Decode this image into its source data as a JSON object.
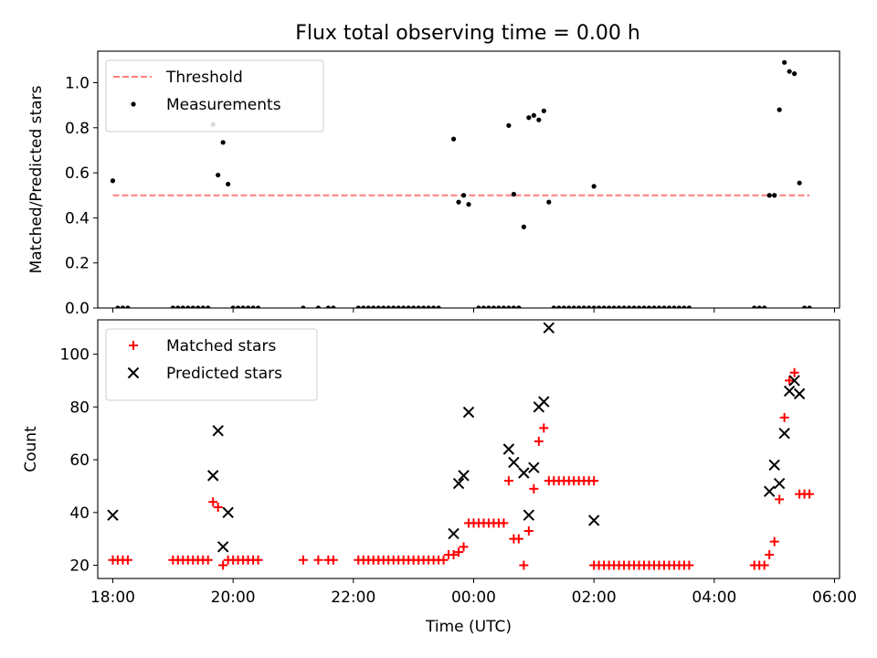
{
  "title": "Flux total observing time = 0.00 h",
  "colors": {
    "threshold": "#ff7f7f",
    "measurements": "#000000",
    "matched": "#ff0000",
    "predicted": "#000000"
  },
  "chart_data": [
    {
      "type": "scatter",
      "panel": "top",
      "title": "Flux total observing time = 0.00 h",
      "xlabel": "",
      "ylabel": "Matched/Predicted stars",
      "xlim": [
        "17:45",
        "06:05"
      ],
      "ylim": [
        0,
        1.14
      ],
      "x_ticks": [
        "18:00",
        "20:00",
        "22:00",
        "00:00",
        "02:00",
        "04:00",
        "06:00"
      ],
      "y_ticks": [
        0.0,
        0.2,
        0.4,
        0.6,
        0.8,
        1.0
      ],
      "y_tick_labels": [
        "0.0",
        "0.2",
        "0.4",
        "0.6",
        "0.8",
        "1.0"
      ],
      "legend_position": "top-left",
      "threshold": {
        "name": "Threshold",
        "value": 0.5,
        "x_range": [
          "18:00",
          "05:35"
        ],
        "style": "dashed"
      },
      "series": [
        {
          "name": "Measurements",
          "points": [
            [
              "18:00",
              0.565
            ],
            [
              "18:05",
              0
            ],
            [
              "18:10",
              0
            ],
            [
              "18:15",
              0
            ],
            [
              "19:00",
              0
            ],
            [
              "19:05",
              0
            ],
            [
              "19:10",
              0
            ],
            [
              "19:15",
              0
            ],
            [
              "19:20",
              0
            ],
            [
              "19:25",
              0
            ],
            [
              "19:30",
              0
            ],
            [
              "19:35",
              0
            ],
            [
              "19:40",
              0.815
            ],
            [
              "19:45",
              0.59
            ],
            [
              "19:50",
              0.735
            ],
            [
              "19:55",
              0.55
            ],
            [
              "20:00",
              0
            ],
            [
              "20:05",
              0
            ],
            [
              "20:10",
              0
            ],
            [
              "20:15",
              0
            ],
            [
              "20:20",
              0
            ],
            [
              "20:25",
              0
            ],
            [
              "21:10",
              0
            ],
            [
              "21:25",
              0
            ],
            [
              "21:35",
              0
            ],
            [
              "21:40",
              0
            ],
            [
              "22:05",
              0
            ],
            [
              "22:10",
              0
            ],
            [
              "22:15",
              0
            ],
            [
              "22:20",
              0
            ],
            [
              "22:25",
              0
            ],
            [
              "22:30",
              0
            ],
            [
              "22:35",
              0
            ],
            [
              "22:40",
              0
            ],
            [
              "22:45",
              0
            ],
            [
              "22:50",
              0
            ],
            [
              "22:55",
              0
            ],
            [
              "23:00",
              0
            ],
            [
              "23:05",
              0
            ],
            [
              "23:10",
              0
            ],
            [
              "23:15",
              0
            ],
            [
              "23:20",
              0
            ],
            [
              "23:25",
              0
            ],
            [
              "23:40",
              0.75
            ],
            [
              "23:45",
              0.47
            ],
            [
              "23:50",
              0.5
            ],
            [
              "23:55",
              0.46
            ],
            [
              "00:05",
              0
            ],
            [
              "00:10",
              0
            ],
            [
              "00:15",
              0
            ],
            [
              "00:20",
              0
            ],
            [
              "00:25",
              0
            ],
            [
              "00:30",
              0
            ],
            [
              "00:35",
              0
            ],
            [
              "00:40",
              0
            ],
            [
              "00:45",
              0
            ],
            [
              "00:35",
              0.81
            ],
            [
              "00:40",
              0.505
            ],
            [
              "00:45",
              0
            ],
            [
              "00:50",
              0.36
            ],
            [
              "00:55",
              0.845
            ],
            [
              "01:00",
              0.855
            ],
            [
              "01:05",
              0.835
            ],
            [
              "01:10",
              0.875
            ],
            [
              "01:15",
              0.47
            ],
            [
              "01:20",
              0
            ],
            [
              "01:25",
              0
            ],
            [
              "01:30",
              0
            ],
            [
              "01:35",
              0
            ],
            [
              "01:40",
              0
            ],
            [
              "01:45",
              0
            ],
            [
              "01:50",
              0
            ],
            [
              "01:55",
              0
            ],
            [
              "02:00",
              0
            ],
            [
              "02:05",
              0
            ],
            [
              "02:00",
              0.54
            ],
            [
              "02:10",
              0
            ],
            [
              "02:15",
              0
            ],
            [
              "02:20",
              0
            ],
            [
              "02:25",
              0
            ],
            [
              "02:30",
              0
            ],
            [
              "02:35",
              0
            ],
            [
              "02:40",
              0
            ],
            [
              "02:45",
              0
            ],
            [
              "02:50",
              0
            ],
            [
              "02:55",
              0
            ],
            [
              "03:00",
              0
            ],
            [
              "03:05",
              0
            ],
            [
              "03:10",
              0
            ],
            [
              "03:15",
              0
            ],
            [
              "03:20",
              0
            ],
            [
              "03:25",
              0
            ],
            [
              "03:30",
              0
            ],
            [
              "03:35",
              0
            ],
            [
              "04:40",
              0
            ],
            [
              "04:45",
              0
            ],
            [
              "04:50",
              0
            ],
            [
              "04:55",
              0.5
            ],
            [
              "05:00",
              0.5
            ],
            [
              "05:05",
              0.88
            ],
            [
              "05:10",
              1.09
            ],
            [
              "05:15",
              1.05
            ],
            [
              "05:20",
              1.04
            ],
            [
              "05:25",
              0.555
            ],
            [
              "05:30",
              0
            ],
            [
              "05:35",
              0
            ]
          ]
        }
      ]
    },
    {
      "type": "scatter",
      "panel": "bottom",
      "xlabel": "Time (UTC)",
      "ylabel": "Count",
      "xlim": [
        "17:45",
        "06:05"
      ],
      "ylim": [
        15,
        113
      ],
      "x_ticks": [
        "18:00",
        "20:00",
        "22:00",
        "00:00",
        "02:00",
        "04:00",
        "06:00"
      ],
      "y_ticks": [
        20,
        40,
        60,
        80,
        100
      ],
      "y_tick_labels": [
        "20",
        "40",
        "60",
        "80",
        "100"
      ],
      "legend_position": "top-left",
      "series": [
        {
          "name": "Matched stars",
          "marker": "plus",
          "points": [
            [
              "18:00",
              22
            ],
            [
              "18:05",
              22
            ],
            [
              "18:10",
              22
            ],
            [
              "18:15",
              22
            ],
            [
              "19:00",
              22
            ],
            [
              "19:05",
              22
            ],
            [
              "19:10",
              22
            ],
            [
              "19:15",
              22
            ],
            [
              "19:20",
              22
            ],
            [
              "19:25",
              22
            ],
            [
              "19:30",
              22
            ],
            [
              "19:35",
              22
            ],
            [
              "19:40",
              44
            ],
            [
              "19:45",
              42
            ],
            [
              "19:50",
              20
            ],
            [
              "19:55",
              22
            ],
            [
              "20:00",
              22
            ],
            [
              "20:05",
              22
            ],
            [
              "20:10",
              22
            ],
            [
              "20:15",
              22
            ],
            [
              "20:20",
              22
            ],
            [
              "20:25",
              22
            ],
            [
              "21:10",
              22
            ],
            [
              "21:25",
              22
            ],
            [
              "21:35",
              22
            ],
            [
              "21:40",
              22
            ],
            [
              "22:05",
              22
            ],
            [
              "22:10",
              22
            ],
            [
              "22:15",
              22
            ],
            [
              "22:20",
              22
            ],
            [
              "22:25",
              22
            ],
            [
              "22:30",
              22
            ],
            [
              "22:35",
              22
            ],
            [
              "22:40",
              22
            ],
            [
              "22:45",
              22
            ],
            [
              "22:50",
              22
            ],
            [
              "22:55",
              22
            ],
            [
              "23:00",
              22
            ],
            [
              "23:05",
              22
            ],
            [
              "23:10",
              22
            ],
            [
              "23:15",
              22
            ],
            [
              "23:20",
              22
            ],
            [
              "23:25",
              22
            ],
            [
              "23:30",
              22
            ],
            [
              "23:35",
              24
            ],
            [
              "23:40",
              24
            ],
            [
              "23:45",
              25
            ],
            [
              "23:50",
              27
            ],
            [
              "23:55",
              36
            ],
            [
              "00:00",
              36
            ],
            [
              "00:05",
              36
            ],
            [
              "00:10",
              36
            ],
            [
              "00:15",
              36
            ],
            [
              "00:20",
              36
            ],
            [
              "00:25",
              36
            ],
            [
              "00:30",
              36
            ],
            [
              "00:35",
              52
            ],
            [
              "00:40",
              30
            ],
            [
              "00:45",
              30
            ],
            [
              "00:50",
              20
            ],
            [
              "00:55",
              33
            ],
            [
              "01:00",
              49
            ],
            [
              "01:05",
              67
            ],
            [
              "01:10",
              72
            ],
            [
              "01:15",
              52
            ],
            [
              "01:20",
              52
            ],
            [
              "01:25",
              52
            ],
            [
              "01:30",
              52
            ],
            [
              "01:35",
              52
            ],
            [
              "01:40",
              52
            ],
            [
              "01:45",
              52
            ],
            [
              "01:50",
              52
            ],
            [
              "01:55",
              52
            ],
            [
              "02:00",
              52
            ],
            [
              "02:00",
              20
            ],
            [
              "02:05",
              20
            ],
            [
              "02:10",
              20
            ],
            [
              "02:15",
              20
            ],
            [
              "02:20",
              20
            ],
            [
              "02:25",
              20
            ],
            [
              "02:30",
              20
            ],
            [
              "02:35",
              20
            ],
            [
              "02:40",
              20
            ],
            [
              "02:45",
              20
            ],
            [
              "02:50",
              20
            ],
            [
              "02:55",
              20
            ],
            [
              "03:00",
              20
            ],
            [
              "03:05",
              20
            ],
            [
              "03:10",
              20
            ],
            [
              "03:15",
              20
            ],
            [
              "03:20",
              20
            ],
            [
              "03:25",
              20
            ],
            [
              "03:30",
              20
            ],
            [
              "03:35",
              20
            ],
            [
              "04:40",
              20
            ],
            [
              "04:45",
              20
            ],
            [
              "04:50",
              20
            ],
            [
              "04:55",
              24
            ],
            [
              "05:00",
              29
            ],
            [
              "05:05",
              45
            ],
            [
              "05:10",
              76
            ],
            [
              "05:15",
              90
            ],
            [
              "05:20",
              93
            ],
            [
              "05:25",
              47
            ],
            [
              "05:30",
              47
            ],
            [
              "05:35",
              47
            ]
          ]
        },
        {
          "name": "Predicted stars",
          "marker": "x",
          "points": [
            [
              "18:00",
              39
            ],
            [
              "19:40",
              54
            ],
            [
              "19:45",
              71
            ],
            [
              "19:50",
              27
            ],
            [
              "19:55",
              40
            ],
            [
              "23:40",
              32
            ],
            [
              "23:45",
              51
            ],
            [
              "23:50",
              54
            ],
            [
              "23:55",
              78
            ],
            [
              "00:35",
              64
            ],
            [
              "00:40",
              59
            ],
            [
              "00:50",
              55
            ],
            [
              "00:55",
              39
            ],
            [
              "01:00",
              57
            ],
            [
              "01:05",
              80
            ],
            [
              "01:10",
              82
            ],
            [
              "01:15",
              110
            ],
            [
              "02:00",
              37
            ],
            [
              "04:55",
              48
            ],
            [
              "05:00",
              58
            ],
            [
              "05:05",
              51
            ],
            [
              "05:10",
              70
            ],
            [
              "05:15",
              86
            ],
            [
              "05:20",
              90
            ],
            [
              "05:25",
              85
            ]
          ]
        }
      ]
    }
  ]
}
